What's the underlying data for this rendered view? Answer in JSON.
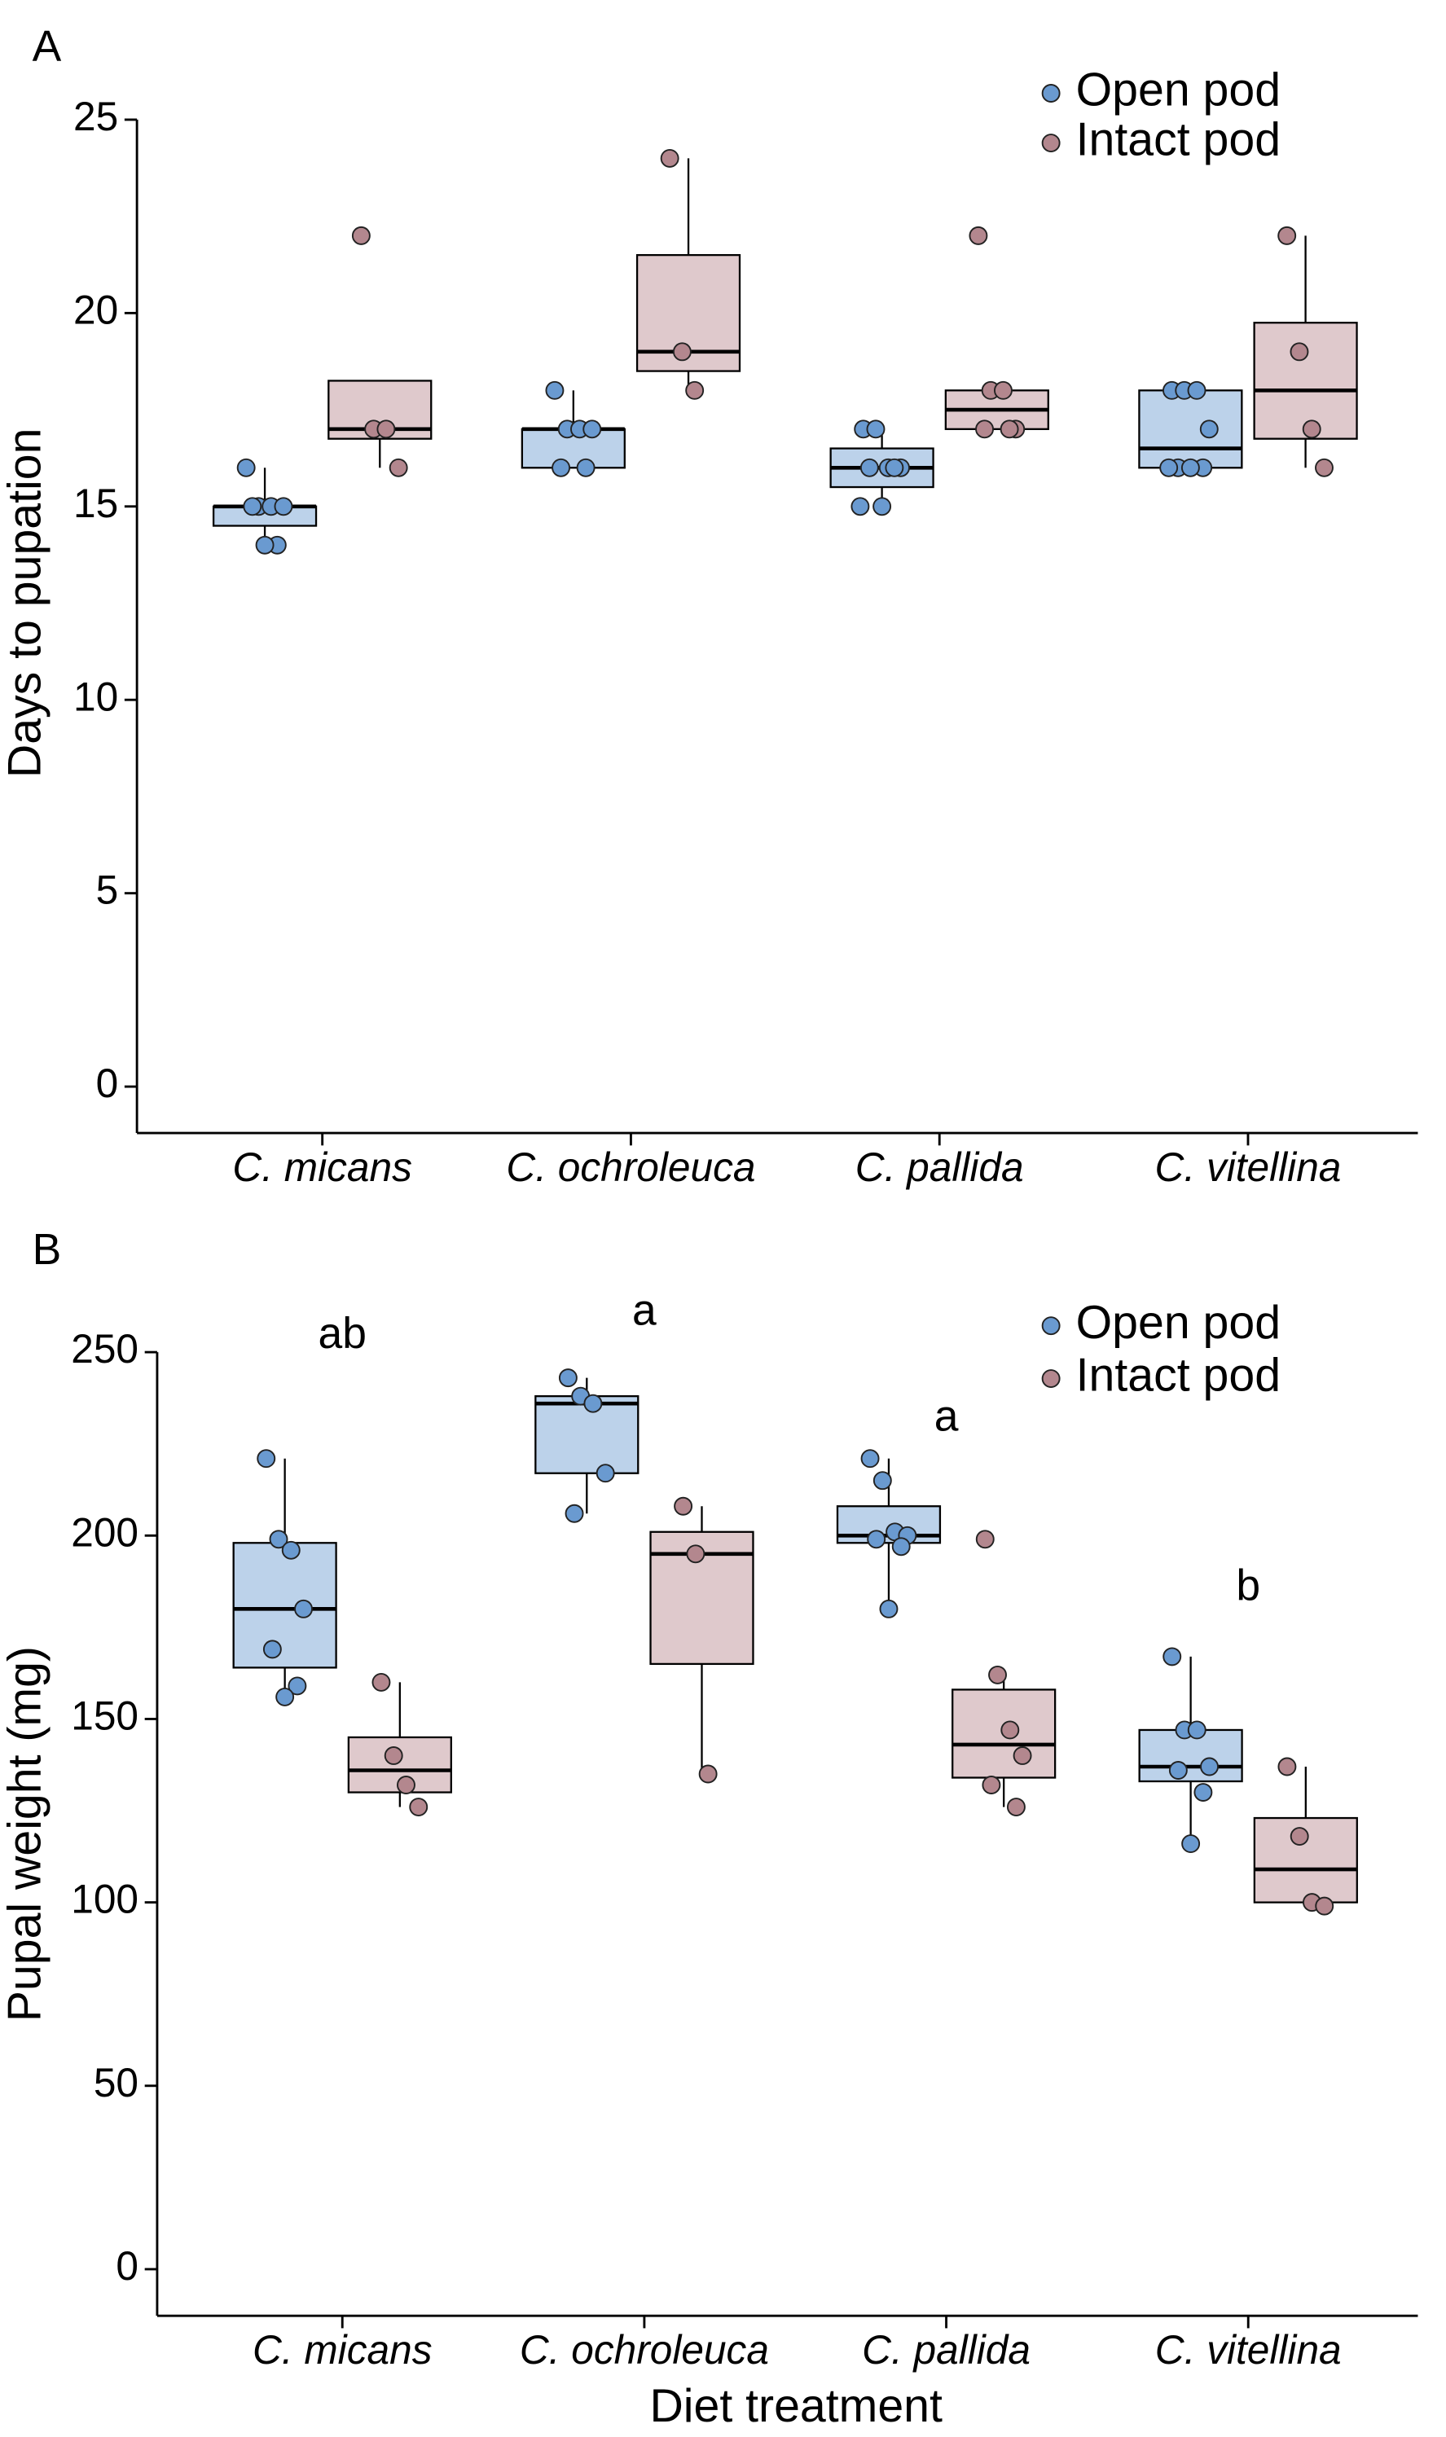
{
  "chart_data": [
    {
      "type": "box",
      "panel_label": "A",
      "ylabel": "Days to pupation",
      "categories": [
        "C. micans",
        "C. ochroleuca",
        "C. pallida",
        "C. vitellina"
      ],
      "ylim": [
        -1.2,
        25
      ],
      "yticks": [
        0,
        5,
        10,
        15,
        20,
        25
      ],
      "legend": "upper right",
      "series": [
        {
          "name": "Open pod",
          "color": "#6a9ad0",
          "box_color": "#bcd2ea",
          "boxes": [
            {
              "whislo": 14,
              "q1": 14.5,
              "med": 15,
              "q3": 15,
              "whishi": 16,
              "points": [
                16,
                15,
                15,
                15,
                15,
                14,
                14
              ]
            },
            {
              "whislo": 16,
              "q1": 16,
              "med": 17,
              "q3": 17,
              "whishi": 18,
              "points": [
                18,
                17,
                17,
                17,
                16,
                16
              ]
            },
            {
              "whislo": 15,
              "q1": 15.5,
              "med": 16,
              "q3": 16.5,
              "whishi": 17,
              "points": [
                17,
                17,
                16,
                16,
                16,
                16,
                15,
                15
              ]
            },
            {
              "whislo": 16,
              "q1": 16,
              "med": 16.5,
              "q3": 18,
              "whishi": 18,
              "points": [
                18,
                18,
                18,
                17,
                16,
                16,
                16,
                16
              ]
            }
          ]
        },
        {
          "name": "Intact pod",
          "color": "#b3878e",
          "box_color": "#dfc9cc",
          "boxes": [
            {
              "whislo": 16,
              "q1": 16.75,
              "med": 17,
              "q3": 18.25,
              "whishi": 18.25,
              "points": [
                22,
                17,
                17,
                16
              ]
            },
            {
              "whislo": 18,
              "q1": 18.5,
              "med": 19,
              "q3": 21.5,
              "whishi": 24,
              "points": [
                24,
                19,
                18
              ]
            },
            {
              "whislo": 17,
              "q1": 17,
              "med": 17.5,
              "q3": 18,
              "whishi": 18,
              "points": [
                22,
                18,
                18,
                17,
                17,
                17
              ]
            },
            {
              "whislo": 16,
              "q1": 16.75,
              "med": 18,
              "q3": 19.75,
              "whishi": 22,
              "points": [
                22,
                19,
                17,
                16
              ]
            }
          ]
        }
      ]
    },
    {
      "type": "box",
      "panel_label": "B",
      "ylabel": "Pupal weight (mg)",
      "xlabel": "Diet treatment",
      "categories": [
        "C. micans",
        "C. ochroleuca",
        "C. pallida",
        "C. vitellina"
      ],
      "group_labels": [
        "ab",
        "a",
        "a",
        "b"
      ],
      "ylim": [
        -12.7,
        250
      ],
      "yticks": [
        0,
        50,
        100,
        150,
        200,
        250
      ],
      "legend": "upper right",
      "series": [
        {
          "name": "Open pod",
          "color": "#6a9ad0",
          "box_color": "#bcd2ea",
          "boxes": [
            {
              "whislo": 156,
              "q1": 164,
              "med": 180,
              "q3": 198,
              "whishi": 221,
              "points": [
                221,
                199,
                196,
                180,
                169,
                159,
                156
              ]
            },
            {
              "whislo": 206,
              "q1": 217,
              "med": 236,
              "q3": 238,
              "whishi": 243,
              "points": [
                243,
                238,
                236,
                217,
                206
              ]
            },
            {
              "whislo": 180,
              "q1": 198,
              "med": 200,
              "q3": 208,
              "whishi": 221,
              "points": [
                221,
                215,
                201,
                200,
                199,
                197,
                180
              ]
            },
            {
              "whislo": 116,
              "q1": 133,
              "med": 137,
              "q3": 147,
              "whishi": 167,
              "points": [
                167,
                147,
                147,
                137,
                136,
                130,
                116
              ]
            }
          ]
        },
        {
          "name": "Intact pod",
          "color": "#b3878e",
          "box_color": "#dfc9cc",
          "boxes": [
            {
              "whislo": 126,
              "q1": 130,
              "med": 136,
              "q3": 145,
              "whishi": 160,
              "points": [
                160,
                140,
                132,
                126
              ]
            },
            {
              "whislo": 135,
              "q1": 165,
              "med": 195,
              "q3": 201,
              "whishi": 208,
              "points": [
                208,
                195,
                135
              ]
            },
            {
              "whislo": 126,
              "q1": 134,
              "med": 143,
              "q3": 158,
              "whishi": 162,
              "points": [
                199,
                162,
                147,
                140,
                132,
                126
              ]
            },
            {
              "whislo": 99,
              "q1": 100,
              "med": 109,
              "q3": 123,
              "whishi": 137,
              "points": [
                137,
                118,
                100,
                99
              ]
            }
          ]
        }
      ]
    }
  ]
}
